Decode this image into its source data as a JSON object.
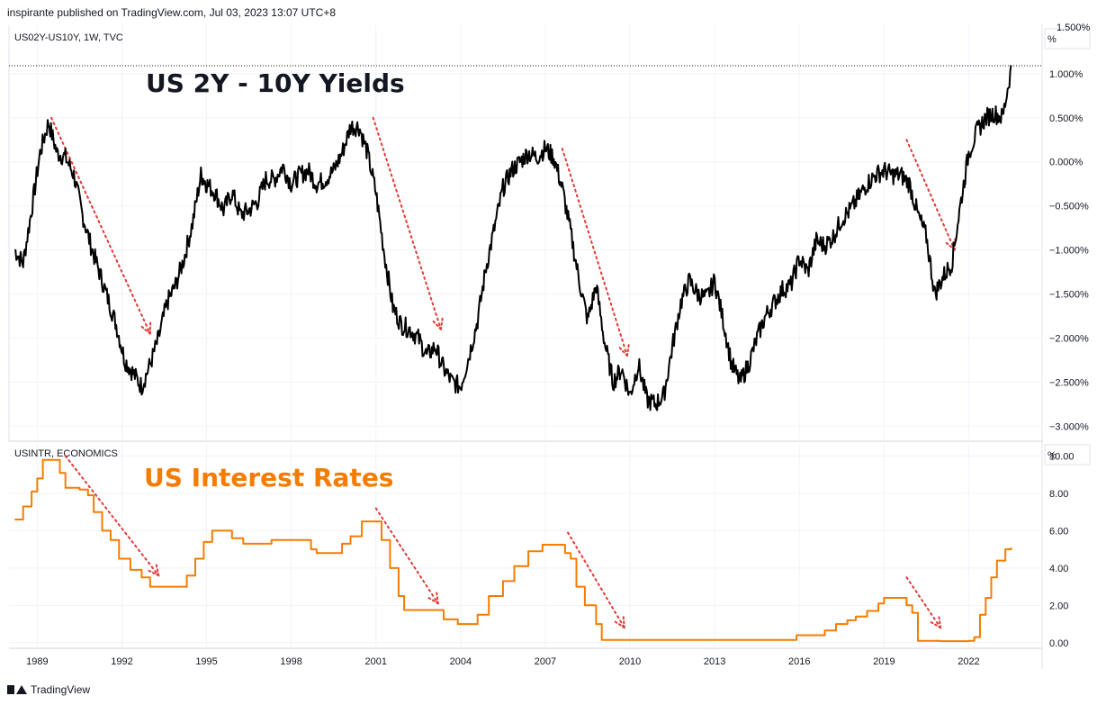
{
  "header": {
    "text": "inspirante published on TradingView.com, Jul 03, 2023 13:07 UTC+8"
  },
  "footer": {
    "brand": "TradingView"
  },
  "colors": {
    "yield_line": "#000000",
    "rates_line": "#f57c00",
    "annotation": "#e53935",
    "grid": "#f0f3fa"
  },
  "chart_data": [
    {
      "type": "line",
      "pane_label": "US02Y-US10Y, 1W, TVC",
      "title": "US 2Y - 10Y Yields",
      "unit_label": "%",
      "y_ticks": [
        "1.000%",
        "0.500%",
        "0.000%",
        "−0.500%",
        "−1.000%",
        "−1.500%",
        "−2.000%",
        "−2.500%",
        "−3.000%"
      ],
      "y_tick_values": [
        1.0,
        0.5,
        0.0,
        -0.5,
        -1.0,
        -1.5,
        -2.0,
        -2.5,
        -3.0
      ],
      "top_clip_label": "1.500%",
      "ylim": [
        -3.15,
        1.55
      ],
      "xlim": [
        1988.0,
        2024.6
      ],
      "x": [
        1988.2,
        1988.5,
        1988.8,
        1989.1,
        1989.4,
        1989.7,
        1990.0,
        1990.3,
        1990.6,
        1990.9,
        1991.2,
        1991.5,
        1991.8,
        1992.1,
        1992.4,
        1992.7,
        1993.0,
        1993.3,
        1993.6,
        1993.9,
        1994.2,
        1994.5,
        1994.8,
        1995.0,
        1995.3,
        1995.6,
        1995.9,
        1996.2,
        1996.5,
        1996.8,
        1997.1,
        1997.4,
        1997.7,
        1998.0,
        1998.3,
        1998.6,
        1998.9,
        1999.2,
        1999.5,
        1999.8,
        2000.1,
        2000.4,
        2000.7,
        2001.0,
        2001.3,
        2001.6,
        2001.9,
        2002.2,
        2002.5,
        2002.8,
        2003.1,
        2003.4,
        2003.7,
        2004.0,
        2004.3,
        2004.6,
        2004.9,
        2005.2,
        2005.5,
        2005.8,
        2006.1,
        2006.4,
        2006.7,
        2007.0,
        2007.3,
        2007.6,
        2007.9,
        2008.2,
        2008.5,
        2008.8,
        2009.1,
        2009.4,
        2009.7,
        2010.0,
        2010.3,
        2010.6,
        2010.9,
        2011.2,
        2011.5,
        2011.8,
        2012.1,
        2012.4,
        2012.7,
        2013.0,
        2013.3,
        2013.6,
        2013.9,
        2014.2,
        2014.5,
        2014.8,
        2015.1,
        2015.4,
        2015.7,
        2016.0,
        2016.3,
        2016.6,
        2016.9,
        2017.2,
        2017.5,
        2017.8,
        2018.1,
        2018.4,
        2018.7,
        2019.0,
        2019.3,
        2019.6,
        2019.9,
        2020.2,
        2020.5,
        2020.8,
        2021.1,
        2021.4,
        2021.7,
        2022.0,
        2022.3,
        2022.6,
        2022.9,
        2023.2,
        2023.5
      ],
      "y": [
        -1.0,
        -1.15,
        -0.55,
        0.1,
        0.45,
        0.1,
        0.05,
        -0.15,
        -0.6,
        -0.95,
        -1.25,
        -1.55,
        -1.85,
        -2.25,
        -2.4,
        -2.55,
        -2.3,
        -2.0,
        -1.6,
        -1.4,
        -1.1,
        -0.7,
        -0.15,
        -0.25,
        -0.35,
        -0.55,
        -0.35,
        -0.6,
        -0.55,
        -0.45,
        -0.2,
        -0.2,
        -0.05,
        -0.25,
        -0.15,
        -0.1,
        -0.25,
        -0.2,
        -0.1,
        0.1,
        0.4,
        0.4,
        0.1,
        -0.35,
        -1.05,
        -1.65,
        -1.85,
        -1.9,
        -2.0,
        -2.2,
        -2.1,
        -2.35,
        -2.5,
        -2.55,
        -2.2,
        -1.8,
        -1.2,
        -0.75,
        -0.3,
        -0.1,
        0.0,
        0.1,
        0.05,
        0.15,
        0.05,
        -0.3,
        -0.8,
        -1.35,
        -1.8,
        -1.4,
        -2.05,
        -2.5,
        -2.35,
        -2.65,
        -2.3,
        -2.7,
        -2.75,
        -2.65,
        -2.1,
        -1.6,
        -1.35,
        -1.5,
        -1.55,
        -1.35,
        -1.8,
        -2.3,
        -2.5,
        -2.3,
        -2.0,
        -1.75,
        -1.6,
        -1.45,
        -1.4,
        -1.1,
        -1.25,
        -0.9,
        -0.95,
        -0.85,
        -0.65,
        -0.55,
        -0.4,
        -0.25,
        -0.15,
        -0.1,
        -0.15,
        -0.15,
        -0.25,
        -0.6,
        -0.85,
        -1.5,
        -1.3,
        -1.15,
        -0.5,
        0.1,
        0.35,
        0.5,
        0.55,
        0.5,
        1.05
      ]
    },
    {
      "type": "line",
      "pane_label": "USINTR, ECONOMICS",
      "title": "US Interest Rates",
      "unit_label": "%",
      "y_ticks": [
        "10.00",
        "8.00",
        "6.00",
        "4.00",
        "2.00",
        "0.00"
      ],
      "y_tick_values": [
        10,
        8,
        6,
        4,
        2,
        0
      ],
      "ylim": [
        -0.3,
        10.7
      ],
      "xlim": [
        1988.0,
        2024.6
      ],
      "x_ticks": [
        "1989",
        "1992",
        "1995",
        "1998",
        "2001",
        "2004",
        "2007",
        "2010",
        "2013",
        "2016",
        "2019",
        "2022"
      ],
      "x_tick_values": [
        1989,
        1992,
        1995,
        1998,
        2001,
        2004,
        2007,
        2010,
        2013,
        2016,
        2019,
        2022
      ],
      "x": [
        1988.2,
        1988.5,
        1988.8,
        1989.0,
        1989.2,
        1989.5,
        1989.8,
        1990.0,
        1990.5,
        1990.8,
        1991.0,
        1991.3,
        1991.6,
        1991.9,
        1992.3,
        1992.7,
        1993.0,
        1993.5,
        1994.0,
        1994.3,
        1994.6,
        1994.9,
        1995.2,
        1995.6,
        1995.9,
        1996.3,
        1996.8,
        1997.3,
        1997.8,
        1998.3,
        1998.7,
        1998.9,
        1999.4,
        1999.8,
        2000.1,
        2000.5,
        2001.0,
        2001.2,
        2001.5,
        2001.8,
        2002.0,
        2002.5,
        2002.9,
        2003.4,
        2003.9,
        2004.3,
        2004.6,
        2005.0,
        2005.5,
        2005.9,
        2006.4,
        2006.9,
        2007.5,
        2007.7,
        2007.9,
        2008.1,
        2008.4,
        2008.8,
        2009.0,
        2010.0,
        2012.0,
        2014.0,
        2015.9,
        2016.9,
        2017.3,
        2017.7,
        2018.0,
        2018.4,
        2018.8,
        2019.0,
        2019.5,
        2019.8,
        2020.0,
        2020.2,
        2021.0,
        2022.0,
        2022.2,
        2022.4,
        2022.6,
        2022.8,
        2023.0,
        2023.3,
        2023.5
      ],
      "y": [
        6.6,
        7.3,
        8.1,
        8.8,
        9.8,
        9.8,
        9.1,
        8.3,
        8.2,
        7.9,
        7.0,
        6.0,
        5.5,
        4.5,
        3.9,
        3.5,
        3.0,
        3.0,
        3.0,
        3.6,
        4.5,
        5.4,
        6.0,
        6.0,
        5.6,
        5.3,
        5.3,
        5.5,
        5.5,
        5.5,
        5.0,
        4.8,
        4.8,
        5.3,
        5.7,
        6.5,
        6.5,
        5.5,
        4.0,
        2.5,
        1.75,
        1.75,
        1.75,
        1.25,
        1.0,
        1.0,
        1.5,
        2.5,
        3.3,
        4.1,
        4.9,
        5.25,
        5.25,
        4.8,
        4.5,
        3.0,
        2.0,
        1.0,
        0.15,
        0.15,
        0.15,
        0.15,
        0.4,
        0.65,
        1.0,
        1.2,
        1.4,
        1.7,
        2.1,
        2.4,
        2.4,
        2.0,
        1.6,
        0.1,
        0.08,
        0.1,
        0.3,
        1.5,
        2.4,
        3.5,
        4.4,
        5.0,
        5.1
      ]
    }
  ],
  "annotations": {
    "yield_arrows": [
      {
        "from": [
          1989.5,
          0.5
        ],
        "to": [
          1993.0,
          -1.95
        ]
      },
      {
        "from": [
          2000.9,
          0.5
        ],
        "to": [
          2003.3,
          -1.9
        ]
      },
      {
        "from": [
          2007.6,
          0.15
        ],
        "to": [
          2009.9,
          -2.2
        ]
      },
      {
        "from": [
          2019.8,
          0.25
        ],
        "to": [
          2021.5,
          -1.0
        ]
      }
    ],
    "rates_arrows": [
      {
        "from": [
          1990.0,
          10.0
        ],
        "to": [
          1993.3,
          3.6
        ]
      },
      {
        "from": [
          2001.0,
          7.2
        ],
        "to": [
          2003.2,
          2.1
        ]
      },
      {
        "from": [
          2007.8,
          5.9
        ],
        "to": [
          2009.8,
          0.8
        ]
      },
      {
        "from": [
          2019.8,
          3.5
        ],
        "to": [
          2021.0,
          0.8
        ]
      }
    ]
  }
}
